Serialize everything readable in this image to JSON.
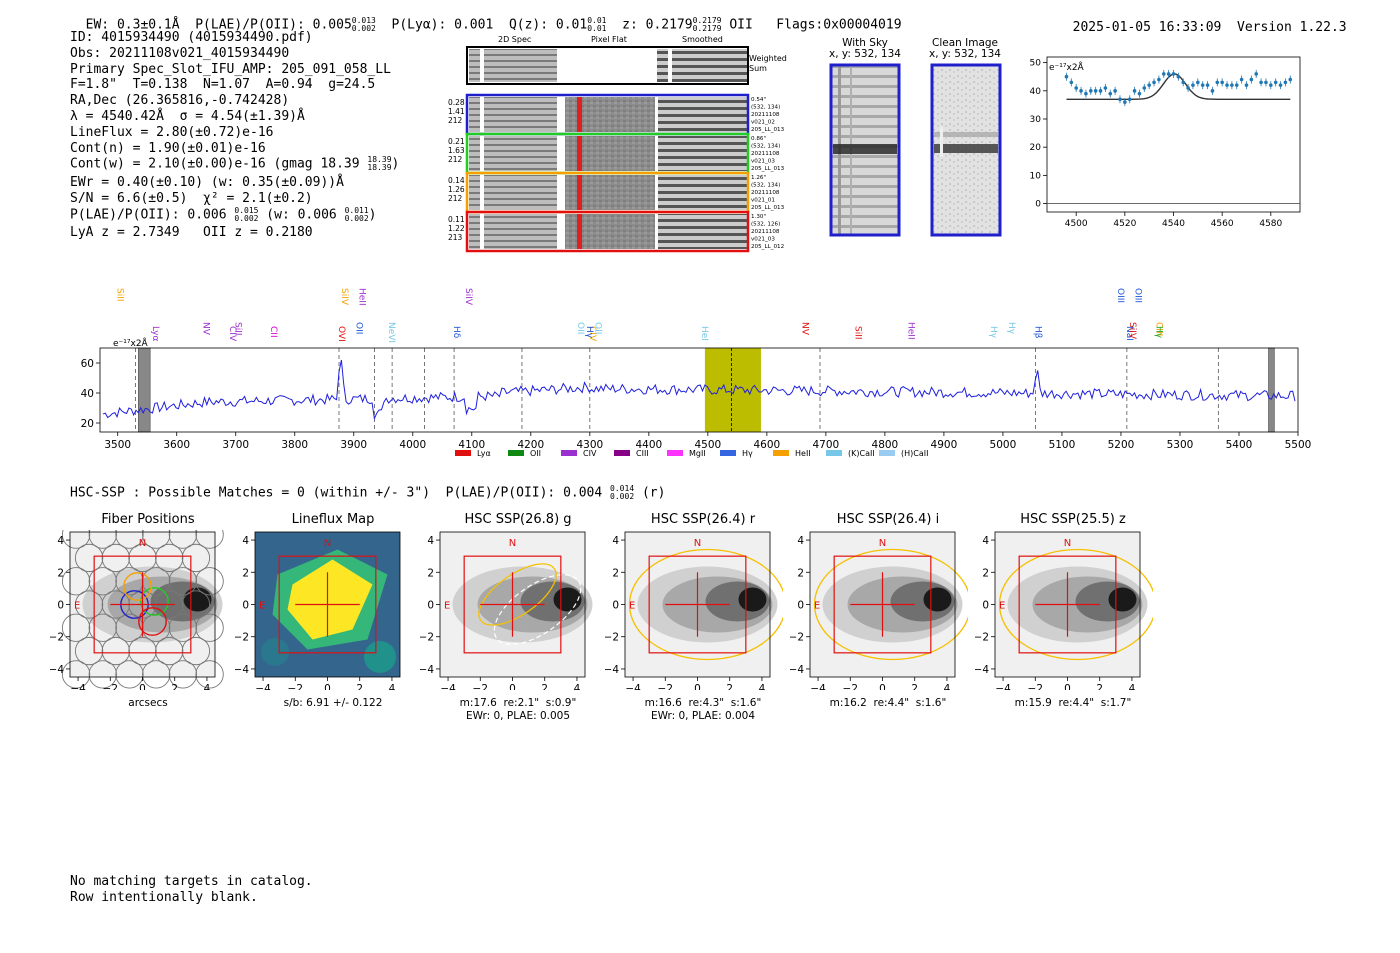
{
  "header": {
    "ew": "EW: 0.3±0.1Å",
    "plae_label": "P(LAE)/P(OII): 0.005",
    "plae_hi": "0.013",
    "plae_lo": "0.002",
    "plya": "P(Lyα): 0.001",
    "qz": "Q(z): 0.01",
    "qz_hi": "0.01",
    "qz_lo": "0.01",
    "z": "z: 0.2179",
    "z_hi": "0.2179",
    "z_lo": "0.2179",
    "z_line": "OII",
    "flags": "Flags:0x00004019",
    "datetime": "2025-01-05 16:33:09",
    "version": "Version 1.22.3"
  },
  "info": {
    "id": "ID: 4015934490 (4015934490.pdf)",
    "obs": "Obs: 20211108v021_4015934490",
    "primary": "Primary Spec_Slot_IFU_AMP: 205_091_058_LL",
    "fwhm": "F=1.8\"  T=0.138  N=1.07  A=0.94  g=24.5",
    "radec": "RA,Dec (26.365816,-0.742428)",
    "lambda": "λ = 4540.42Å  σ = 4.54(±1.39)Å",
    "lineflux": "LineFlux = 2.80(±0.72)e-16",
    "contn": "Cont(n) = 1.90(±0.01)e-16",
    "contw": "Cont(w) = 2.10(±0.00)e-16 (gmag 18.39",
    "gmag_hi": "18.39",
    "gmag_lo": "18.39",
    "ewr": "EWr = 0.40(±0.10) (w: 0.35(±0.09))Å",
    "sn": "S/N = 6.6(±0.5)  χ² = 2.1(±0.2)",
    "plae2": "P(LAE)/P(OII): 0.006",
    "plae2_hi": "0.015",
    "plae2_lo": "0.002",
    "plae2_w": "(w: 0.006",
    "plae2_w_hi": "0.011",
    "plae2_w_lo": "0.002",
    "lya": "LyA z = 2.7349   OII z = 0.2180"
  },
  "cutouts": {
    "col_2d": "2D Spec",
    "col_flat": "Pixel Flat",
    "col_smooth": "Smoothed",
    "weighted": "Weighted",
    "sum": "Sum",
    "rows": [
      {
        "left": [
          "0.28",
          "1.41",
          "212"
        ],
        "right": [
          "0.54\"",
          "(532, 134)",
          "20211108",
          "v021_02",
          "205_LL_013"
        ],
        "color": "#1f1fcc"
      },
      {
        "left": [
          "0.21",
          "1.63",
          "212"
        ],
        "right": [
          "0.86\"",
          "(532, 134)",
          "20211108",
          "v021_03",
          "205_LL_013"
        ],
        "color": "#22cc22"
      },
      {
        "left": [
          "0.14",
          "1.26",
          "212"
        ],
        "right": [
          "1.26\"",
          "(532, 134)",
          "20211108",
          "v021_01",
          "205_LL_013"
        ],
        "color": "#f5a000"
      },
      {
        "left": [
          "0.11",
          "1.22",
          "213"
        ],
        "right": [
          "1.30\"",
          "(532, 126)",
          "20211108",
          "v021_03",
          "205_LL_012"
        ],
        "color": "#e01010"
      }
    ]
  },
  "sky": {
    "with_sky_title": "With Sky",
    "with_sky_coord": "x, y: 532, 134",
    "clean_title": "Clean Image",
    "clean_coord": "x, y: 532, 134"
  },
  "zoom_plot": {
    "unit": "e⁻¹⁷x2Å",
    "yticks": [
      "50",
      "40",
      "30",
      "20",
      "10",
      "0"
    ],
    "xticks": [
      "4500",
      "4520",
      "4540",
      "4560",
      "4580"
    ],
    "points": [
      [
        4496,
        45
      ],
      [
        4498,
        43
      ],
      [
        4500,
        41
      ],
      [
        4502,
        40
      ],
      [
        4504,
        39
      ],
      [
        4506,
        40
      ],
      [
        4508,
        40
      ],
      [
        4510,
        40
      ],
      [
        4512,
        41
      ],
      [
        4514,
        39
      ],
      [
        4516,
        40
      ],
      [
        4518,
        37
      ],
      [
        4520,
        36
      ],
      [
        4522,
        37
      ],
      [
        4524,
        40
      ],
      [
        4526,
        39
      ],
      [
        4528,
        41
      ],
      [
        4530,
        42
      ],
      [
        4532,
        43
      ],
      [
        4534,
        44
      ],
      [
        4536,
        46
      ],
      [
        4538,
        46
      ],
      [
        4540,
        46
      ],
      [
        4542,
        45
      ],
      [
        4544,
        43
      ],
      [
        4546,
        41
      ],
      [
        4548,
        42
      ],
      [
        4550,
        43
      ],
      [
        4552,
        42
      ],
      [
        4554,
        42
      ],
      [
        4556,
        40
      ],
      [
        4558,
        43
      ],
      [
        4560,
        43
      ],
      [
        4562,
        42
      ],
      [
        4564,
        42
      ],
      [
        4566,
        42
      ],
      [
        4568,
        44
      ],
      [
        4570,
        42
      ],
      [
        4572,
        44
      ],
      [
        4574,
        46
      ],
      [
        4576,
        43
      ],
      [
        4578,
        43
      ],
      [
        4580,
        42
      ],
      [
        4582,
        43
      ],
      [
        4584,
        42
      ],
      [
        4586,
        43
      ],
      [
        4588,
        44
      ]
    ]
  },
  "spectrum": {
    "unit": "e⁻¹⁷x2Å",
    "yticks": [
      "60",
      "40",
      "20"
    ],
    "xticks": [
      "3500",
      "3600",
      "3700",
      "3800",
      "3900",
      "4000",
      "4100",
      "4200",
      "4300",
      "4400",
      "4500",
      "4600",
      "4700",
      "4800",
      "4900",
      "5000",
      "5100",
      "5200",
      "5300",
      "5400",
      "5500"
    ],
    "line_labels": [
      {
        "name": "SiII",
        "color": "#f5a000",
        "x": 3500
      },
      {
        "name": "Lyα",
        "color": "#9b30d0",
        "x": 3560
      },
      {
        "name": "NV",
        "color": "#9b30d0",
        "x": 3645
      },
      {
        "name": "CIV",
        "color": "#9b30d0",
        "x": 3690
      },
      {
        "name": "SiII",
        "color": "#9b30d0",
        "x": 3700
      },
      {
        "name": "CII",
        "color": "#d500d5",
        "x": 3760
      },
      {
        "name": "SiIV",
        "color": "#f5a000",
        "x": 3880
      },
      {
        "name": "OVI",
        "color": "#e01010",
        "x": 3875
      },
      {
        "name": "OII",
        "color": "#1f56d8",
        "x": 3905
      },
      {
        "name": "HeII",
        "color": "#9b30d0",
        "x": 3910
      },
      {
        "name": "NeVI",
        "color": "#77c8e8",
        "x": 3960
      },
      {
        "name": "Hδ",
        "color": "#1f56d8",
        "x": 4070
      },
      {
        "name": "SiIV",
        "color": "#9b30d0",
        "x": 4090
      },
      {
        "name": "CIV",
        "color": "#f5a000",
        "x": 4300
      },
      {
        "name": "OII",
        "color": "#77c8e8",
        "x": 4280
      },
      {
        "name": "Hγ",
        "color": "#1f56d8",
        "x": 4295
      },
      {
        "name": "OII",
        "color": "#77c8e8",
        "x": 4310
      },
      {
        "name": "HeI",
        "color": "#77c8e8",
        "x": 4490
      },
      {
        "name": "NV",
        "color": "#e01010",
        "x": 4660
      },
      {
        "name": "SiII",
        "color": "#e01010",
        "x": 4750
      },
      {
        "name": "HeII",
        "color": "#9b30d0",
        "x": 4840
      },
      {
        "name": "Hγ",
        "color": "#77c8e8",
        "x": 4980
      },
      {
        "name": "Hγ",
        "color": "#77c8e8",
        "x": 5010
      },
      {
        "name": "Hβ",
        "color": "#1f56d8",
        "x": 5055
      },
      {
        "name": "OIII",
        "color": "#1f56d8",
        "x": 5195
      },
      {
        "name": "NaI",
        "color": "#1f56d8",
        "x": 5210
      },
      {
        "name": "SiIV",
        "color": "#e01010",
        "x": 5215
      },
      {
        "name": "OIII",
        "color": "#1f56d8",
        "x": 5225
      },
      {
        "name": "CIII",
        "color": "#f5a000",
        "x": 5260
      },
      {
        "name": "Hγ",
        "color": "#22aa22",
        "x": 5260
      }
    ],
    "legend": [
      {
        "label": "Lyα",
        "color": "#e01010"
      },
      {
        "label": "OII",
        "color": "#118811"
      },
      {
        "label": "CIV",
        "color": "#9b30d0"
      },
      {
        "label": "CIII",
        "color": "#880088"
      },
      {
        "label": "MgII",
        "color": "#ff33ff"
      },
      {
        "label": "Hγ",
        "color": "#3366e0"
      },
      {
        "label": "HeII",
        "color": "#f5a000"
      },
      {
        "label": "(K)CaII",
        "color": "#77c8e8"
      },
      {
        "label": "(H)CaII",
        "color": "#99ccf0"
      }
    ]
  },
  "hsc": {
    "caption": "HSC-SSP : Possible Matches = 0 (within +/- 3\")  P(LAE)/P(OII): 0.004",
    "caption_hi": "0.014",
    "caption_lo": "0.002",
    "caption_band": "(r)",
    "panels": [
      {
        "title": "Fiber Positions",
        "line1": "arcsecs",
        "line2": ""
      },
      {
        "title": "Lineflux Map",
        "line1": "s/b: 6.91 +/- 0.122",
        "line2": ""
      },
      {
        "title": "HSC SSP(26.8) g",
        "line1": "m:17.6  re:2.1\"  s:0.9\"",
        "line2": "EWr: 0, PLAE: 0.005"
      },
      {
        "title": "HSC SSP(26.4) r",
        "line1": "m:16.6  re:4.3\"  s:1.6\"",
        "line2": "EWr: 0, PLAE: 0.004"
      },
      {
        "title": "HSC SSP(26.4) i",
        "line1": "m:16.2  re:4.4\"  s:1.6\"",
        "line2": ""
      },
      {
        "title": "HSC SSP(25.5) z",
        "line1": "m:15.9  re:4.4\"  s:1.7\"",
        "line2": ""
      }
    ],
    "ticks": [
      "4",
      "2",
      "0",
      "−2",
      "−4"
    ],
    "xticks": [
      "−4",
      "−2",
      "0",
      "2",
      "4"
    ],
    "north": "N",
    "east": "E"
  },
  "footer": {
    "line1": "No matching targets in catalog.",
    "line2": "Row intentionally blank."
  }
}
